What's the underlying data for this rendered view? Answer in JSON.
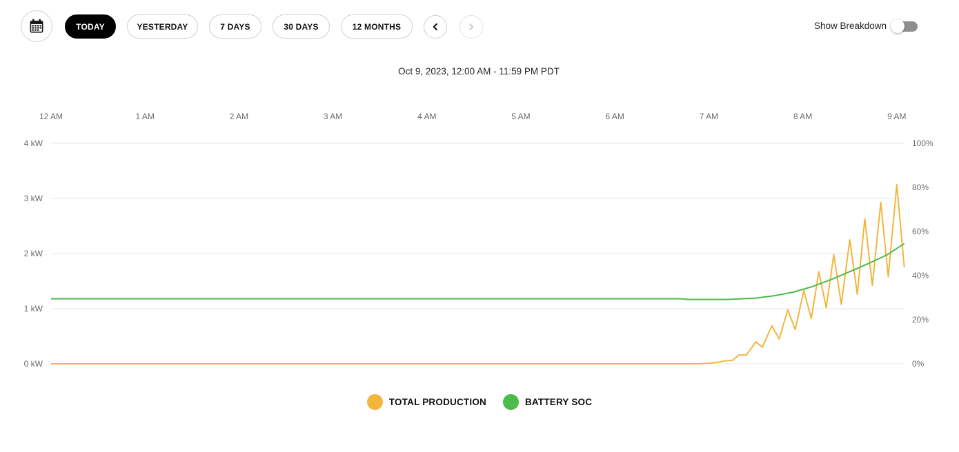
{
  "toolbar": {
    "calendar_icon": "calendar-icon",
    "ranges": [
      {
        "label": "TODAY",
        "active": true
      },
      {
        "label": "YESTERDAY",
        "active": false
      },
      {
        "label": "7 DAYS",
        "active": false
      },
      {
        "label": "30 DAYS",
        "active": false
      },
      {
        "label": "12 MONTHS",
        "active": false
      }
    ],
    "prev_icon": "chevron-left-icon",
    "next_icon": "chevron-right-icon",
    "breakdown_label": "Show Breakdown",
    "breakdown_on": false
  },
  "date_range": "Oct 9, 2023, 12:00 AM - 11:59 PM PDT",
  "colors": {
    "production": "#f3b63c",
    "battery": "#4cbb4a",
    "active_button": "#000000",
    "toggle_track": "#8f8f8f"
  },
  "chart_data": {
    "type": "line",
    "x_ticks": [
      "12 AM",
      "1 AM",
      "2 AM",
      "3 AM",
      "4 AM",
      "5 AM",
      "6 AM",
      "7 AM",
      "8 AM",
      "9 AM"
    ],
    "y_left_ticks": [
      "0 kW",
      "1 kW",
      "2 kW",
      "3 kW",
      "4 kW"
    ],
    "y_right_ticks": [
      "0%",
      "20%",
      "40%",
      "60%",
      "80%",
      "100%"
    ],
    "y_left_range": [
      0,
      4
    ],
    "y_right_range": [
      0,
      100
    ],
    "x_range_hours": [
      0,
      9.08
    ],
    "grid": true,
    "legend_position": "bottom-center",
    "series": [
      {
        "name": "TOTAL PRODUCTION",
        "axis": "left",
        "unit": "kW",
        "points": [
          [
            0,
            0
          ],
          [
            6.9,
            0
          ],
          [
            7.0,
            0.01
          ],
          [
            7.1,
            0.03
          ],
          [
            7.2,
            0.06
          ],
          [
            7.25,
            0.06
          ],
          [
            7.32,
            0.16
          ],
          [
            7.4,
            0.16
          ],
          [
            7.5,
            0.4
          ],
          [
            7.57,
            0.3
          ],
          [
            7.67,
            0.69
          ],
          [
            7.75,
            0.45
          ],
          [
            7.84,
            0.98
          ],
          [
            7.92,
            0.62
          ],
          [
            8.01,
            1.33
          ],
          [
            8.09,
            0.82
          ],
          [
            8.17,
            1.67
          ],
          [
            8.25,
            1.02
          ],
          [
            8.33,
            1.98
          ],
          [
            8.41,
            1.08
          ],
          [
            8.5,
            2.25
          ],
          [
            8.58,
            1.26
          ],
          [
            8.66,
            2.63
          ],
          [
            8.74,
            1.42
          ],
          [
            8.83,
            2.93
          ],
          [
            8.91,
            1.58
          ],
          [
            9.0,
            3.25
          ],
          [
            9.08,
            1.75
          ]
        ]
      },
      {
        "name": "BATTERY SOC",
        "axis": "right",
        "unit": "%",
        "points": [
          [
            0,
            29.5
          ],
          [
            6.7,
            29.5
          ],
          [
            6.8,
            29.2
          ],
          [
            7.0,
            29.2
          ],
          [
            7.2,
            29.2
          ],
          [
            7.5,
            29.8
          ],
          [
            7.7,
            30.9
          ],
          [
            7.9,
            32.5
          ],
          [
            8.1,
            35.0
          ],
          [
            8.3,
            38.2
          ],
          [
            8.5,
            41.8
          ],
          [
            8.7,
            45.5
          ],
          [
            8.9,
            49.5
          ],
          [
            9.08,
            54.5
          ]
        ]
      }
    ]
  }
}
